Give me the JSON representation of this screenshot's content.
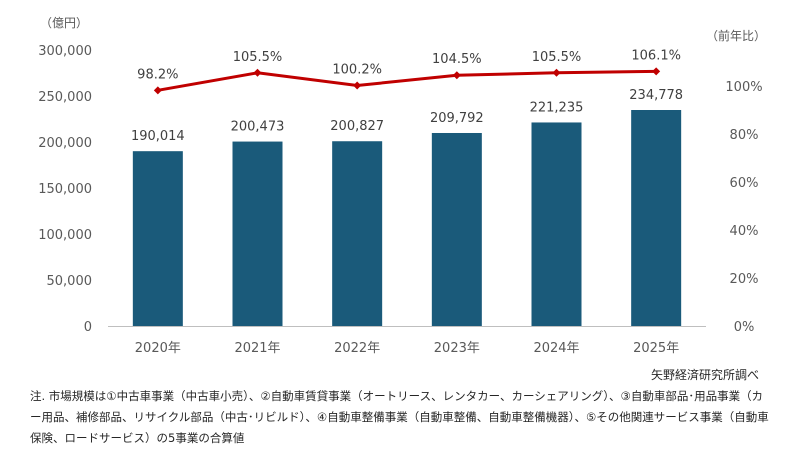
{
  "chart_data": {
    "type": "bar+line",
    "categories": [
      "2020年",
      "2021年",
      "2022年",
      "2023年",
      "2024年",
      "2025年"
    ],
    "series": [
      {
        "type": "bar",
        "axis": "left",
        "values": [
          190014,
          200473,
          200827,
          209792,
          221235,
          234778
        ],
        "labels": [
          "190,014",
          "200,473",
          "200,827",
          "209,792",
          "221,235",
          "234,778"
        ],
        "color": "#1a5a7a"
      },
      {
        "type": "line",
        "axis": "right",
        "values": [
          98.2,
          105.5,
          100.2,
          104.5,
          105.5,
          106.1
        ],
        "labels": [
          "98.2%",
          "105.5%",
          "100.2%",
          "104.5%",
          "105.5%",
          "106.1%"
        ],
        "color": "#c00000"
      }
    ],
    "left_axis": {
      "unit": "（億円）",
      "range": [
        0,
        300000
      ],
      "ticks": [
        "0",
        "50,000",
        "100,000",
        "150,000",
        "200,000",
        "250,000",
        "300,000"
      ]
    },
    "right_axis": {
      "unit": "（前年比）",
      "range": [
        0,
        115
      ],
      "tick_values": [
        0,
        20,
        40,
        60,
        80,
        100
      ],
      "ticks": [
        "0%",
        "20%",
        "40%",
        "60%",
        "80%",
        "100%"
      ]
    },
    "grid": false,
    "legend": "none"
  },
  "source": "矢野経済研究所調べ",
  "note": "注. 市場規模は①中古車事業（中古車小売）、②自動車賃貸事業（オートリース、レンタカー、カーシェアリング）、③自動車部品･用品事業（カー用品、補修部品、リサイクル部品（中古･リビルド）、④自動車整備事業（自動車整備、自動車整備機器）、⑤その他関連サービス事業（自動車保険、ロードサービス）の5事業の合算値"
}
